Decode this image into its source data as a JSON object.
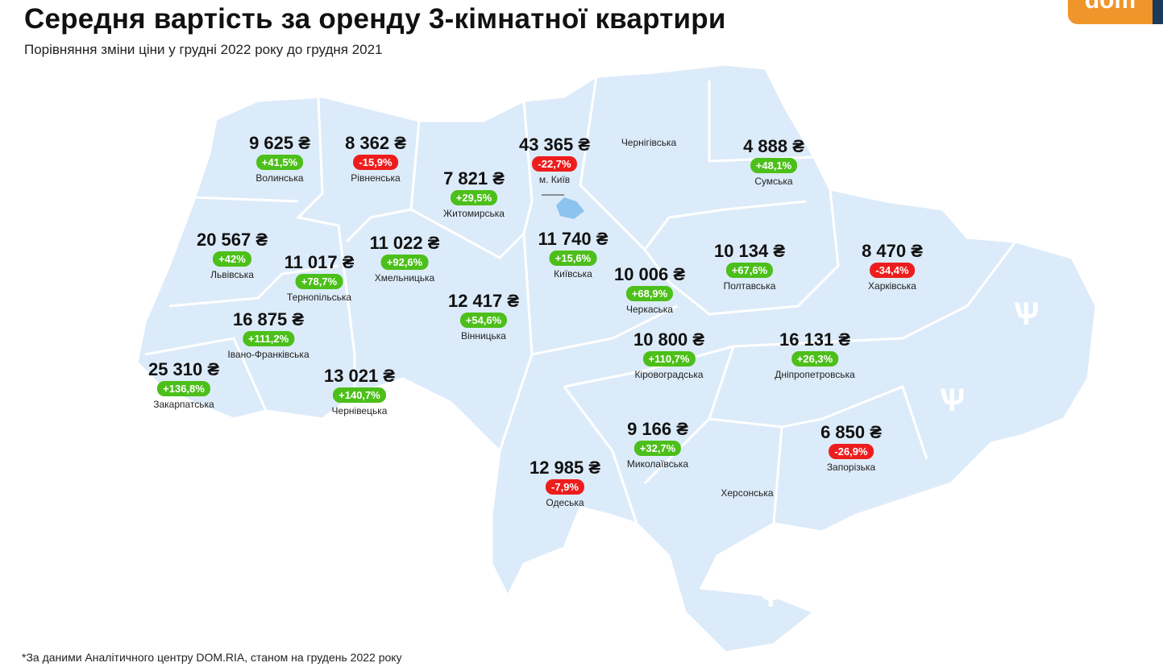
{
  "header": {
    "title": "Середня вартість за оренду 3-кімнатної квартири",
    "subtitle": "Порівняння зміни ціни у грудні 2022 року до грудня 2021",
    "logo": "dom"
  },
  "footnote": "*За даними Аналітичного центру DOM.RIA, станом на грудень 2022 року",
  "colors": {
    "map": "#dcebf9",
    "up": "#4cbf1a",
    "down": "#ee1d1d",
    "logo": "#f0952a"
  },
  "regions": [
    {
      "name": "Волинська",
      "value": "9 625 ₴",
      "change": "+41,5%",
      "dir": "up"
    },
    {
      "name": "Рівненська",
      "value": "8 362 ₴",
      "change": "-15,9%",
      "dir": "down"
    },
    {
      "name": "Житомирська",
      "value": "7 821 ₴",
      "change": "+29,5%",
      "dir": "up"
    },
    {
      "name": "м. Київ",
      "value": "43 365 ₴",
      "change": "-22,7%",
      "dir": "down"
    },
    {
      "name": "Сумська",
      "value": "4 888 ₴",
      "change": "+48,1%",
      "dir": "up"
    },
    {
      "name": "Львівська",
      "value": "20 567 ₴",
      "change": "+42%",
      "dir": "up"
    },
    {
      "name": "Тернопільська",
      "value": "11 017 ₴",
      "change": "+78,7%",
      "dir": "up"
    },
    {
      "name": "Хмельницька",
      "value": "11 022 ₴",
      "change": "+92,6%",
      "dir": "up"
    },
    {
      "name": "Київська",
      "value": "11 740 ₴",
      "change": "+15,6%",
      "dir": "up"
    },
    {
      "name": "Черкаська",
      "value": "10 006 ₴",
      "change": "+68,9%",
      "dir": "up"
    },
    {
      "name": "Полтавська",
      "value": "10 134 ₴",
      "change": "+67,6%",
      "dir": "up"
    },
    {
      "name": "Харківська",
      "value": "8 470 ₴",
      "change": "-34,4%",
      "dir": "down"
    },
    {
      "name": "Вінницька",
      "value": "12 417 ₴",
      "change": "+54,6%",
      "dir": "up"
    },
    {
      "name": "Івано-Франківська",
      "value": "16 875 ₴",
      "change": "+111,2%",
      "dir": "up"
    },
    {
      "name": "Закарпатська",
      "value": "25 310 ₴",
      "change": "+136,8%",
      "dir": "up"
    },
    {
      "name": "Чернівецька",
      "value": "13 021 ₴",
      "change": "+140,7%",
      "dir": "up"
    },
    {
      "name": "Кіровоградська",
      "value": "10 800 ₴",
      "change": "+110,7%",
      "dir": "up"
    },
    {
      "name": "Дніпропетровська",
      "value": "16 131 ₴",
      "change": "+26,3%",
      "dir": "up"
    },
    {
      "name": "Миколаївська",
      "value": "9 166 ₴",
      "change": "+32,7%",
      "dir": "up"
    },
    {
      "name": "Запорізька",
      "value": "6 850 ₴",
      "change": "-26,9%",
      "dir": "down"
    },
    {
      "name": "Одеська",
      "value": "12 985 ₴",
      "change": "-7,9%",
      "dir": "down"
    }
  ],
  "label_only": [
    "Чернігівська",
    "Херсонська"
  ]
}
